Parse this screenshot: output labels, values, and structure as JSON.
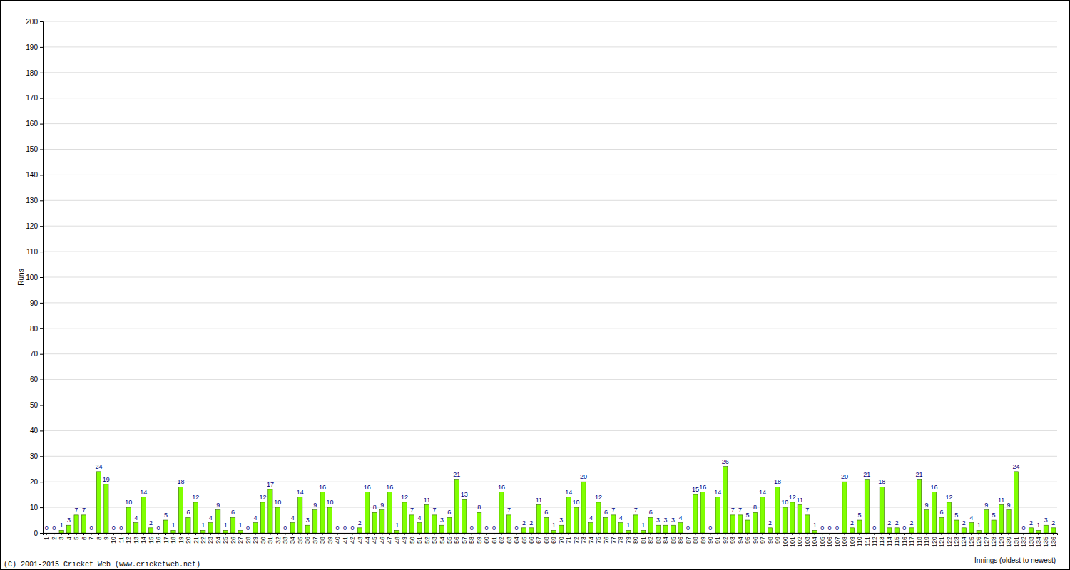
{
  "chart_data": {
    "type": "bar",
    "y_label": "Runs",
    "x_label": "Innings (oldest to newest)",
    "annotations": [
      "(C) 2001-2015 Cricket Web (www.cricketweb.net)"
    ],
    "categories": [
      "1",
      "2",
      "3",
      "4",
      "5",
      "6",
      "7",
      "8",
      "9",
      "10",
      "11",
      "12",
      "13",
      "14",
      "15",
      "16",
      "17",
      "18",
      "19",
      "20",
      "21",
      "22",
      "23",
      "24",
      "25",
      "26",
      "27",
      "28",
      "29",
      "30",
      "31",
      "32",
      "33",
      "34",
      "35",
      "36",
      "37",
      "38",
      "39",
      "40",
      "41",
      "42",
      "43",
      "44",
      "45",
      "46",
      "47",
      "48",
      "49",
      "50",
      "51",
      "52",
      "53",
      "54",
      "55",
      "56",
      "57",
      "58",
      "59",
      "60",
      "61",
      "62",
      "63",
      "64",
      "65",
      "66",
      "67",
      "68",
      "69",
      "70",
      "71",
      "72",
      "73",
      "74",
      "75",
      "76",
      "77",
      "78",
      "79",
      "80",
      "81",
      "82",
      "83",
      "84",
      "85",
      "86",
      "87",
      "88",
      "89",
      "90",
      "91",
      "92",
      "93",
      "94",
      "95",
      "96",
      "97",
      "98",
      "99",
      "100",
      "101",
      "102",
      "103",
      "104",
      "105",
      "106",
      "107",
      "108",
      "109",
      "110",
      "111",
      "112",
      "113",
      "114",
      "115",
      "116",
      "117",
      "118",
      "119",
      "120",
      "121",
      "122",
      "123",
      "124",
      "125",
      "126",
      "127",
      "128",
      "129",
      "130",
      "131",
      "132",
      "133",
      "134",
      "135",
      "136"
    ],
    "values": [
      0,
      0,
      1,
      3,
      7,
      7,
      0,
      24,
      19,
      0,
      0,
      10,
      4,
      14,
      2,
      0,
      5,
      1,
      18,
      6,
      12,
      1,
      4,
      9,
      1,
      6,
      1,
      0,
      4,
      12,
      17,
      10,
      0,
      4,
      14,
      3,
      9,
      16,
      10,
      0,
      0,
      0,
      2,
      16,
      8,
      9,
      16,
      1,
      12,
      7,
      4,
      11,
      7,
      3,
      6,
      21,
      13,
      0,
      8,
      0,
      0,
      16,
      7,
      0,
      2,
      2,
      11,
      6,
      1,
      3,
      14,
      10,
      20,
      4,
      12,
      6,
      7,
      4,
      1,
      7,
      1,
      6,
      3,
      3,
      3,
      4,
      0,
      15,
      16,
      0,
      14,
      26,
      7,
      7,
      5,
      8,
      14,
      2,
      18,
      10,
      12,
      11,
      7,
      1,
      0,
      0,
      0,
      20,
      2,
      5,
      21,
      0,
      18,
      2,
      2,
      0,
      2,
      21,
      9,
      16,
      6,
      12,
      5,
      2,
      4,
      1,
      9,
      5,
      11,
      9,
      24,
      0,
      2,
      1,
      3,
      2
    ],
    "color": "#80ff00",
    "ylim": [
      0,
      200
    ],
    "yticks": [
      0,
      10,
      20,
      30,
      40,
      50,
      60,
      70,
      80,
      90,
      100,
      110,
      120,
      130,
      140,
      150,
      160,
      170,
      180,
      190,
      200
    ],
    "grid": true,
    "data_labels": true
  }
}
